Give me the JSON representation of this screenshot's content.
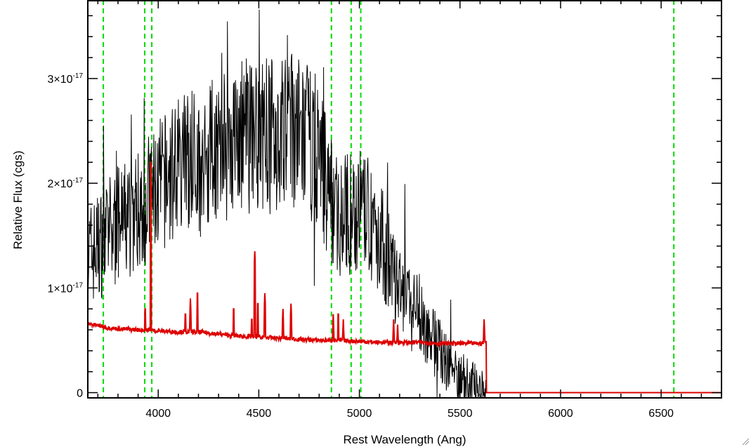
{
  "chart_data": {
    "type": "line",
    "title": "",
    "xlabel": "Rest Wavelength (Ang)",
    "ylabel": "Relative Flux (cgs)",
    "xlim": [
      3650,
      6800
    ],
    "ylim": [
      -5e-19,
      3.75e-17
    ],
    "x_ticks": [
      {
        "value": 4000,
        "label": "4000"
      },
      {
        "value": 4500,
        "label": "4500"
      },
      {
        "value": 5000,
        "label": "5000"
      },
      {
        "value": 5500,
        "label": "5500"
      },
      {
        "value": 6000,
        "label": "6000"
      },
      {
        "value": 6500,
        "label": "6500"
      }
    ],
    "y_ticks": [
      {
        "value": 0,
        "label": "0"
      },
      {
        "value": 1e-17,
        "mantissa": "1×10",
        "exponent": "-17"
      },
      {
        "value": 2e-17,
        "mantissa": "2×10",
        "exponent": "-17"
      },
      {
        "value": 3e-17,
        "mantissa": "3×10",
        "exponent": "-17"
      }
    ],
    "line_markers": {
      "color": "#00dd00",
      "style": "dashed",
      "x": [
        3727,
        3933,
        3968,
        4861,
        4959,
        5007,
        6563
      ]
    },
    "series": [
      {
        "color": "#000000",
        "envelope_x": [
          3650,
          3700,
          3750,
          3800,
          3850,
          3900,
          3950,
          4000,
          4050,
          4100,
          4150,
          4200,
          4250,
          4300,
          4350,
          4400,
          4450,
          4500,
          4550,
          4600,
          4650,
          4700,
          4750,
          4800,
          4850,
          4900,
          4950,
          5000,
          5050,
          5100,
          5150,
          5200,
          5250,
          5300,
          5350,
          5400,
          5450,
          5500,
          5550,
          5600,
          5630
        ],
        "envelope_y": [
          1.3e-17,
          1.4e-17,
          1.5e-17,
          1.6e-17,
          1.65e-17,
          1.75e-17,
          1.85e-17,
          1.95e-17,
          2.05e-17,
          2.15e-17,
          2.2e-17,
          2.25e-17,
          2.3e-17,
          2.35e-17,
          2.4e-17,
          2.45e-17,
          2.45e-17,
          2.5e-17,
          2.45e-17,
          2.45e-17,
          2.5e-17,
          2.45e-17,
          2.4e-17,
          2.3e-17,
          1.9e-17,
          1.7e-17,
          1.7e-17,
          1.75e-17,
          1.65e-17,
          1.5e-17,
          1.2e-17,
          9.5e-18,
          8.5e-18,
          7.5e-18,
          5.5e-18,
          4e-18,
          2.5e-18,
          1.5e-18,
          8e-19,
          4e-19,
          0.0
        ]
      },
      {
        "color": "#dd0000",
        "continuum_x": [
          3650,
          3700,
          3750,
          3800,
          3900,
          4000,
          4100,
          4200,
          4300,
          4400,
          4500,
          4600,
          4700,
          4800,
          4900,
          5000,
          5100,
          5200,
          5300,
          5400,
          5500,
          5600,
          5630,
          5631,
          6800
        ],
        "continuum_y": [
          6.6e-18,
          6.4e-18,
          6.2e-18,
          6.1e-18,
          6e-18,
          5.9e-18,
          5.8e-18,
          5.8e-18,
          5.6e-18,
          5.4e-18,
          5.3e-18,
          5.2e-18,
          5.1e-18,
          5e-18,
          5e-18,
          4.9e-18,
          4.8e-18,
          4.8e-18,
          4.8e-18,
          4.7e-18,
          4.7e-18,
          4.7e-18,
          4.8e-18,
          0.0,
          0.0
        ],
        "peaks_x": [
          3935,
          3963,
          4135,
          4160,
          4195,
          4375,
          4465,
          4480,
          4495,
          4530,
          4620,
          4660,
          4870,
          4895,
          4920,
          5170,
          5190,
          5620
        ],
        "peaks_y": [
          8.5e-18,
          2.25e-17,
          8e-18,
          9e-18,
          1e-17,
          8.5e-18,
          7.5e-18,
          1.35e-17,
          9e-18,
          9.5e-18,
          8e-18,
          8.5e-18,
          7.5e-18,
          8e-18,
          7e-18,
          7e-18,
          6.5e-18,
          7e-18
        ]
      }
    ]
  }
}
